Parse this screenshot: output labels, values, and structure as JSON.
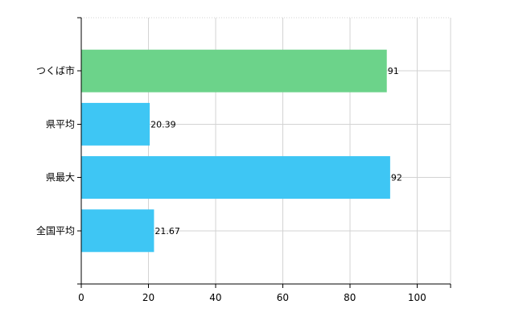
{
  "chart_data": {
    "type": "bar",
    "orientation": "horizontal",
    "categories": [
      "つくば市",
      "県平均",
      "県最大",
      "全国平均"
    ],
    "values": [
      91,
      20.39,
      92,
      21.67
    ],
    "value_labels": [
      "91",
      "20.39",
      "92",
      "21.67"
    ],
    "bar_colors": [
      "#6cd38a",
      "#3ec6f4",
      "#3ec6f4",
      "#3ec6f4"
    ],
    "xlim": [
      0,
      110
    ],
    "xticks": [
      0,
      20,
      40,
      60,
      80,
      100
    ],
    "grid": true,
    "legend": "none",
    "title": "",
    "xlabel": "",
    "ylabel": ""
  }
}
